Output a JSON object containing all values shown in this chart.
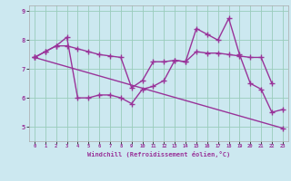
{
  "bg_color": "#cce8f0",
  "line_color": "#993399",
  "grid_color": "#99ccbb",
  "xlabel": "Windchill (Refroidissement éolien,°C)",
  "ylim": [
    4.5,
    9.2
  ],
  "xlim": [
    -0.5,
    23.5
  ],
  "yticks": [
    5,
    6,
    7,
    8,
    9
  ],
  "xticks": [
    0,
    1,
    2,
    3,
    4,
    5,
    6,
    7,
    8,
    9,
    10,
    11,
    12,
    13,
    14,
    15,
    16,
    17,
    18,
    19,
    20,
    21,
    22,
    23
  ],
  "series": [
    [
      7.4,
      7.6,
      7.8,
      8.1,
      6.0,
      6.0,
      6.1,
      6.1,
      6.0,
      5.8,
      6.3,
      6.4,
      6.6,
      7.3,
      7.25,
      8.4,
      8.2,
      8.0,
      8.75,
      7.5,
      6.5,
      6.3,
      5.5,
      5.6
    ],
    [
      7.4,
      7.6,
      7.8,
      7.8,
      7.7,
      7.6,
      7.5,
      7.45,
      7.4,
      6.35,
      6.6,
      7.25,
      7.25,
      7.3,
      7.25,
      7.6,
      7.55,
      7.55,
      7.5,
      7.45,
      7.4,
      7.4,
      6.5,
      null
    ],
    [
      7.4,
      null,
      null,
      null,
      null,
      null,
      null,
      null,
      null,
      null,
      null,
      null,
      null,
      null,
      null,
      null,
      null,
      null,
      null,
      null,
      null,
      null,
      null,
      4.95
    ]
  ],
  "marker": "+",
  "markersize": 4,
  "linewidth": 1.0,
  "title_fontsize": 6,
  "xlabel_fontsize": 5,
  "xtick_fontsize": 4,
  "ytick_fontsize": 5
}
